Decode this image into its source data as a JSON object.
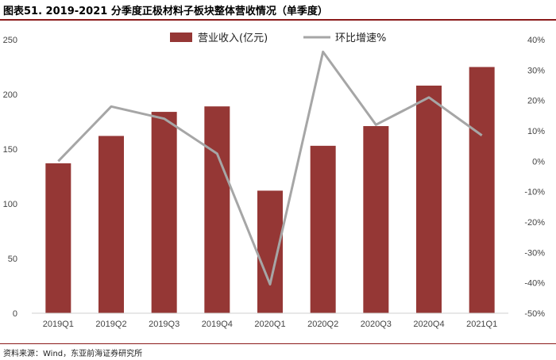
{
  "figure": {
    "title": "图表51. 2019-2021 分季度正极材料子板块整体营收情况（单季度）",
    "source": "资料来源：Wind，东亚前海证券研究所"
  },
  "chart_data": {
    "type": "bar",
    "categories": [
      "2019Q1",
      "2019Q2",
      "2019Q3",
      "2019Q4",
      "2020Q1",
      "2020Q2",
      "2020Q3",
      "2020Q4",
      "2021Q1"
    ],
    "series": [
      {
        "name": "营业收入(亿元)",
        "type": "bar",
        "axis": "left",
        "color": "#953735",
        "values": [
          137,
          162,
          184,
          189,
          112,
          153,
          171,
          208,
          225
        ]
      },
      {
        "name": "环比增速%",
        "type": "line",
        "axis": "right",
        "color": "#a6a6a6",
        "values": [
          0,
          18,
          14,
          2.5,
          -40.5,
          36,
          12,
          21,
          8.5
        ]
      }
    ],
    "y_left": {
      "min": 0,
      "max": 250,
      "step": 50,
      "ticks": [
        "0",
        "50",
        "100",
        "150",
        "200",
        "250"
      ]
    },
    "y_right": {
      "min": -50,
      "max": 40,
      "step": 10,
      "ticks": [
        "-50%",
        "-40%",
        "-30%",
        "-20%",
        "-10%",
        "0%",
        "10%",
        "20%",
        "30%",
        "40%"
      ]
    },
    "legend_position": "top-center",
    "grid": false
  }
}
